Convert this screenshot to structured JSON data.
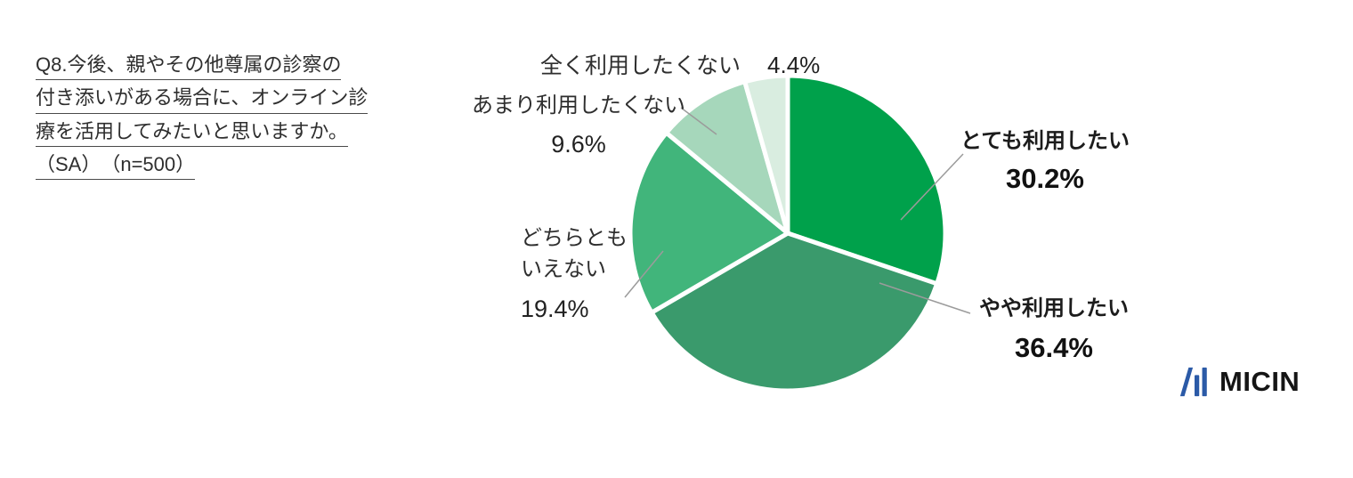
{
  "question": {
    "lines": [
      "Q8.今後、親やその他尊属の診察の",
      "付き添いがある場合に、オンライン診",
      "療を活用してみたいと思いますか。",
      "（SA）　（n=500）"
    ]
  },
  "chart_data": {
    "type": "pie",
    "unit": "%",
    "n": 500,
    "start_angle_deg": 0,
    "direction": "clockwise",
    "gap_color": "#ffffff",
    "slices": [
      {
        "label": "とても利用したい",
        "label_lines": [
          "とても利用したい"
        ],
        "value": 30.2,
        "display": "30.2%",
        "color": "#00A14B",
        "emphasis": true
      },
      {
        "label": "やや利用したい",
        "label_lines": [
          "やや利用したい"
        ],
        "value": 36.4,
        "display": "36.4%",
        "color": "#3A9A6C",
        "emphasis": true
      },
      {
        "label": "どちらともいえない",
        "label_lines": [
          "どちらとも",
          "いえない"
        ],
        "value": 19.4,
        "display": "19.4%",
        "color": "#41B57B",
        "emphasis": false
      },
      {
        "label": "あまり利用したくない",
        "label_lines": [
          "あまり利用したくない"
        ],
        "value": 9.6,
        "display": "9.6%",
        "color": "#A6D7BB",
        "emphasis": false
      },
      {
        "label": "全く利用したくない",
        "label_lines": [
          "全く利用したくない"
        ],
        "value": 4.4,
        "display": "4.4%",
        "color": "#D9EDE0",
        "emphasis": false
      }
    ]
  },
  "logo": {
    "text": "MICIN"
  }
}
